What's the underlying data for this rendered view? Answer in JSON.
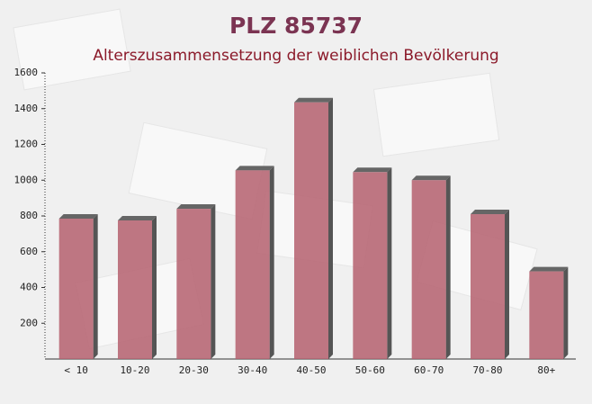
{
  "chart_data": {
    "type": "bar",
    "title": "PLZ 85737",
    "subtitle": "Alterszusammensetzung der weiblichen Bevölkerung",
    "categories": [
      "< 10",
      "10-20",
      "20-30",
      "30-40",
      "40-50",
      "50-60",
      "60-70",
      "70-80",
      "80+"
    ],
    "values": [
      785,
      775,
      840,
      1055,
      1435,
      1045,
      1000,
      810,
      490
    ],
    "color": "#b5606e",
    "ylim": [
      0,
      1600
    ],
    "yticks": [
      200,
      400,
      600,
      800,
      1000,
      1200,
      1400,
      1600
    ]
  }
}
